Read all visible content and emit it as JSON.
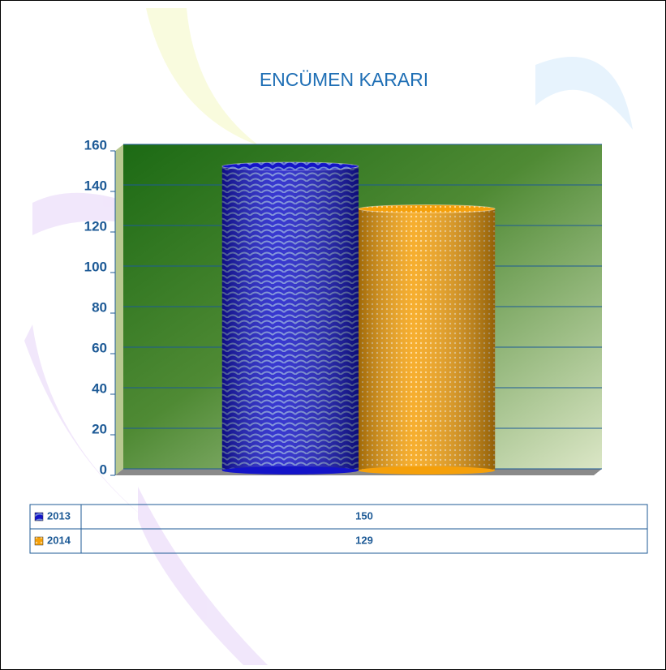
{
  "chart_data": {
    "type": "bar",
    "title": "ENCÜMEN KARARI",
    "categories": [
      null
    ],
    "series": [
      {
        "name": "2013",
        "color": "#1414c8",
        "values": [
          150
        ]
      },
      {
        "name": "2014",
        "color": "#f5a00a",
        "values": [
          129
        ]
      }
    ],
    "ylim": [
      0,
      160
    ],
    "yticks": [
      0,
      20,
      40,
      60,
      80,
      100,
      120,
      140,
      160
    ],
    "grid": true
  }
}
